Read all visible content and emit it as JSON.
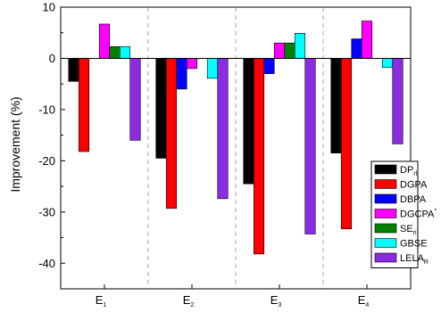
{
  "chart_data": {
    "type": "bar",
    "ylabel": "Improvement (%)",
    "ylim": [
      -45,
      10
    ],
    "yticks": [
      10,
      0,
      -10,
      -20,
      -30,
      -40
    ],
    "ytick_labels": [
      "10",
      "0",
      "-10",
      "-20",
      "-30",
      "-40"
    ],
    "categories": [
      {
        "main": "E",
        "sub": "1"
      },
      {
        "main": "E",
        "sub": "2"
      },
      {
        "main": "E",
        "sub": "3"
      },
      {
        "main": "E",
        "sub": "4"
      }
    ],
    "legend_position": "bottom-right",
    "separators": "dashed-vertical",
    "series": [
      {
        "label": "DP",
        "sub": "rl",
        "sup": "",
        "color": "#000000",
        "values": [
          -4.5,
          -19.5,
          -24.5,
          -18.5
        ]
      },
      {
        "label": "DGPA",
        "sub": "",
        "sup": "",
        "color": "#ff0000",
        "values": [
          -18.2,
          -29.3,
          -38.2,
          -33.3
        ]
      },
      {
        "label": "DBPA",
        "sub": "",
        "sup": "",
        "color": "#0000ff",
        "values": [
          0,
          -6.0,
          -3.0,
          3.8
        ]
      },
      {
        "label": "DGCPA",
        "sub": "",
        "sup": "*",
        "color": "#ff00ff",
        "values": [
          6.7,
          -2.0,
          3.0,
          7.3
        ]
      },
      {
        "label": "SE",
        "sub": "ri",
        "sup": "",
        "color": "#008000",
        "values": [
          2.3,
          0,
          3.0,
          0
        ]
      },
      {
        "label": "GBSE",
        "sub": "",
        "sup": "",
        "color": "#00ffff",
        "values": [
          2.3,
          -3.9,
          4.9,
          -1.8
        ]
      },
      {
        "label": "LELA",
        "sub": "R",
        "sup": "",
        "color": "#8b2be2",
        "values": [
          -16.0,
          -27.4,
          -34.3,
          -16.7
        ]
      }
    ]
  }
}
